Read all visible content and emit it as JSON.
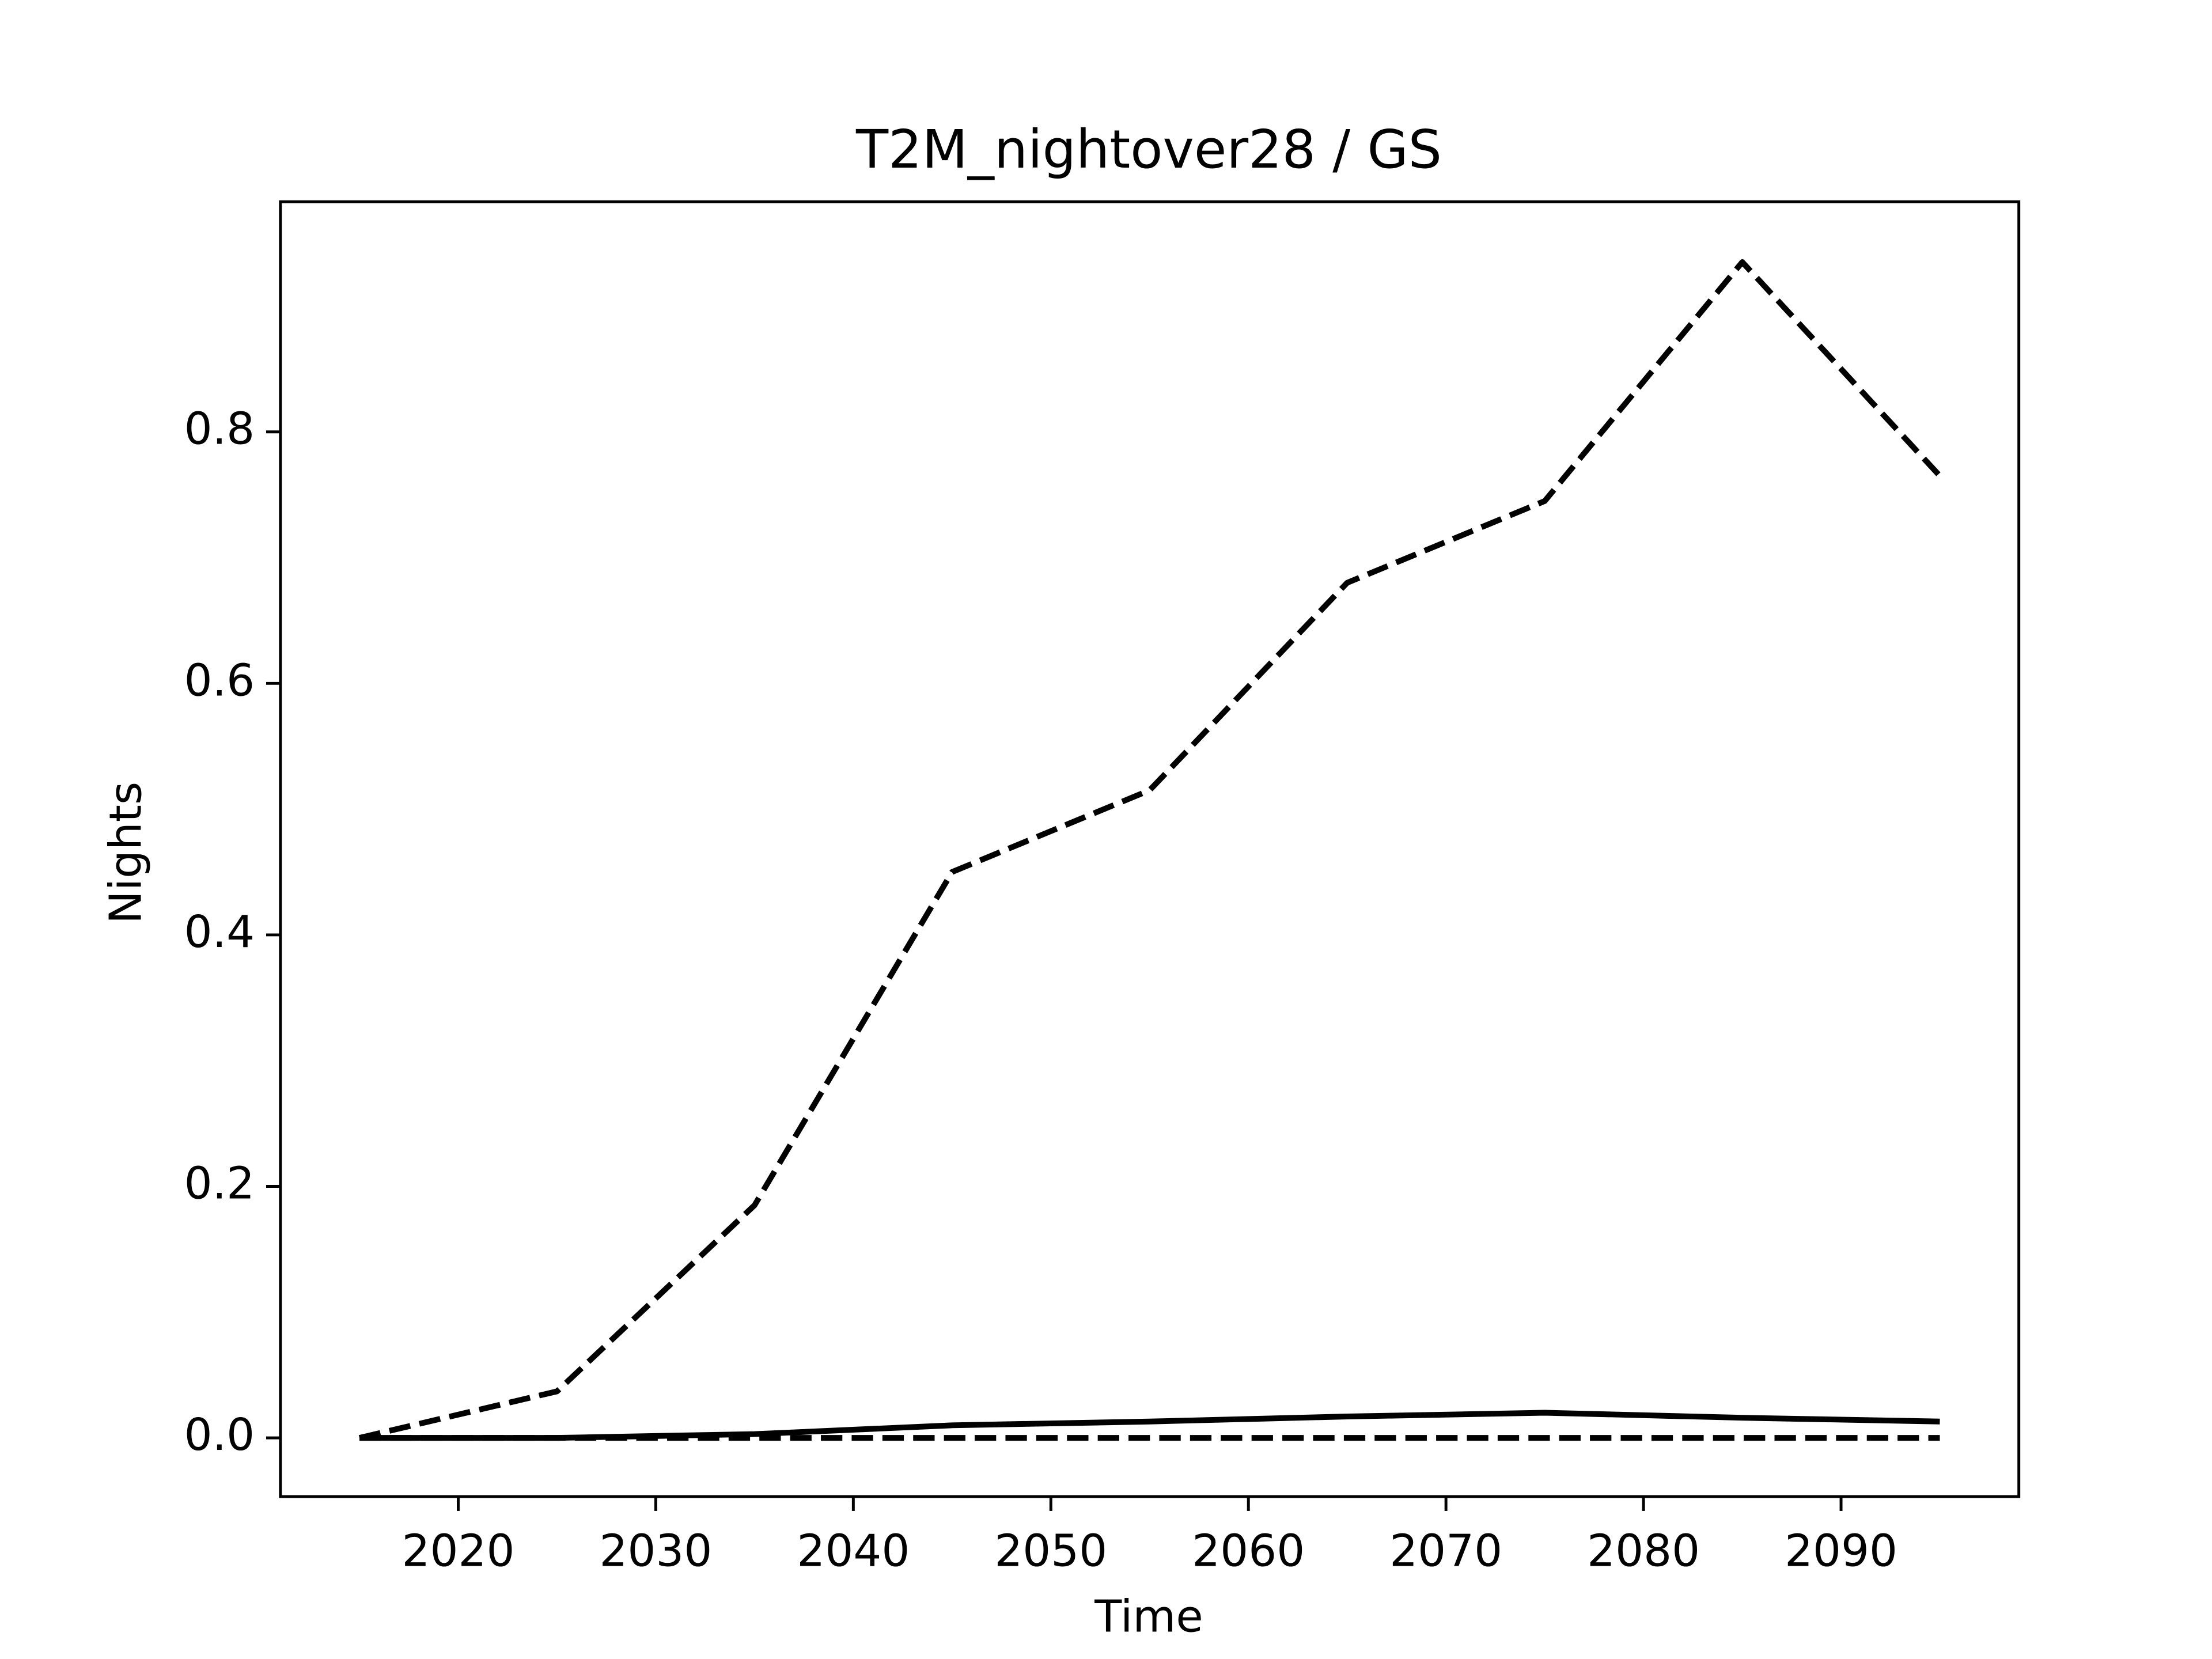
{
  "chart_data": {
    "type": "line",
    "title": "T2M_nightover28 / GS",
    "x_label": "Time",
    "y_label": "Nights",
    "x": [
      2015,
      2025,
      2035,
      2045,
      2055,
      2065,
      2075,
      2085,
      2095
    ],
    "series": [
      {
        "color": "#000000",
        "style": "dashed",
        "values": [
          0,
          0.037,
          0.185,
          0.45,
          0.515,
          0.68,
          0.745,
          0.935,
          0.765
        ]
      },
      {
        "color": "#000000",
        "style": "solid",
        "values": [
          0,
          0,
          0.003,
          0.01,
          0.013,
          0.017,
          0.02,
          0.016,
          0.013
        ]
      },
      {
        "color": "#000000",
        "style": "dashed",
        "values": [
          0,
          0,
          0,
          0,
          0,
          0,
          0,
          0,
          0
        ]
      }
    ],
    "xlim": [
      2011,
      2099
    ],
    "ylim": [
      -0.0467,
      0.983
    ],
    "xticks": [
      2020,
      2030,
      2040,
      2050,
      2060,
      2070,
      2080,
      2090
    ],
    "yticks": [
      {
        "value": 0,
        "label": "0.0"
      },
      0.2,
      0.4,
      0.6,
      0.8
    ],
    "grid": false
  }
}
